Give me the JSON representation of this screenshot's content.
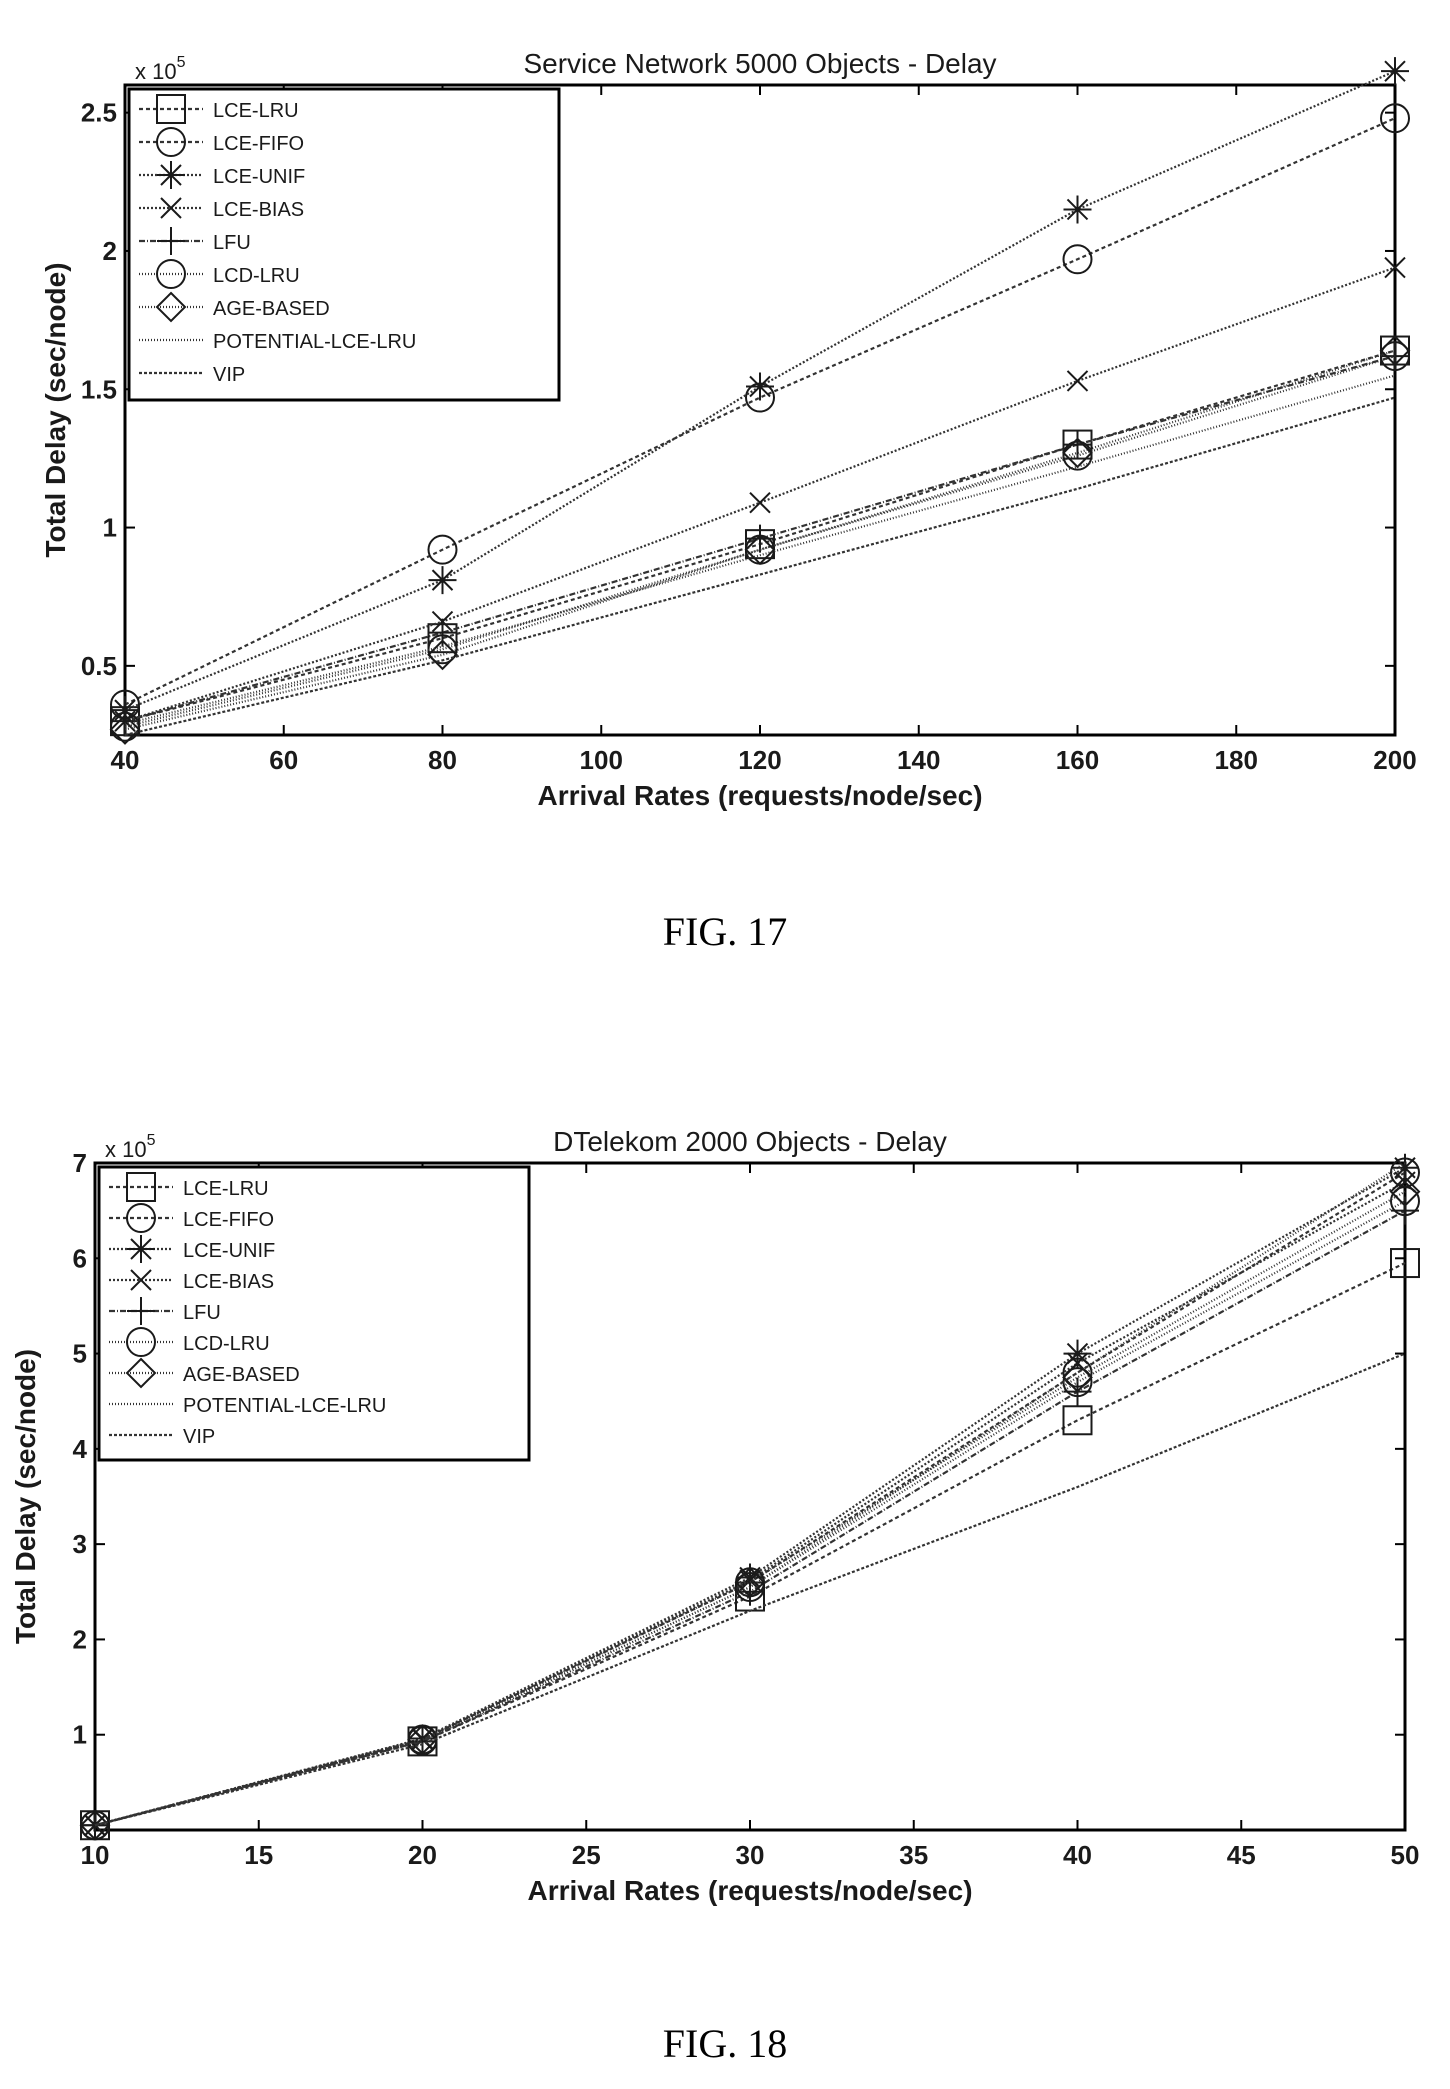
{
  "chart_data": [
    {
      "type": "line",
      "title": "Service Network 5000 Objects - Delay",
      "xlabel": "Arrival Rates (requests/node/sec)",
      "ylabel": "Total Delay (sec/node)",
      "y_multiplier": "x 10",
      "y_multiplier_exp": "5",
      "xlim": [
        40,
        200
      ],
      "ylim": [
        0.25,
        2.6
      ],
      "xticks": [
        40,
        60,
        80,
        100,
        120,
        140,
        160,
        180,
        200
      ],
      "xtick_labels": [
        "40",
        "60",
        "80",
        "100",
        "120",
        "140",
        "160",
        "180",
        "200"
      ],
      "yticks": [
        0.5,
        1,
        1.5,
        2,
        2.5
      ],
      "ytick_labels": [
        "0.5",
        "1",
        "1.5",
        "2",
        "2.5"
      ],
      "legend_position": "top-left",
      "grid": false,
      "x": [
        40,
        80,
        120,
        160,
        200
      ],
      "series": [
        {
          "name": "LCE-LRU",
          "marker": "square",
          "dash": "4 3",
          "values": [
            0.3,
            0.6,
            0.94,
            1.3,
            1.64
          ]
        },
        {
          "name": "LCE-FIFO",
          "marker": "circle",
          "dash": "4 3",
          "values": [
            0.36,
            0.92,
            1.47,
            1.97,
            2.48
          ]
        },
        {
          "name": "LCE-UNIF",
          "marker": "star",
          "dash": "2 2",
          "values": [
            0.34,
            0.81,
            1.51,
            2.15,
            2.65
          ]
        },
        {
          "name": "LCE-BIAS",
          "marker": "xmark",
          "dash": "2 2",
          "values": [
            0.3,
            0.66,
            1.09,
            1.53,
            1.94
          ]
        },
        {
          "name": "LFU",
          "marker": "plus",
          "dash": "6 2 1 2",
          "values": [
            0.3,
            0.62,
            0.96,
            1.3,
            1.62
          ]
        },
        {
          "name": "LCD-LRU",
          "marker": "circle",
          "dash": "1 2",
          "values": [
            0.28,
            0.56,
            0.92,
            1.26,
            1.62
          ]
        },
        {
          "name": "AGE-BASED",
          "marker": "diamond",
          "dash": "1 2",
          "values": [
            0.27,
            0.54,
            0.92,
            1.27,
            1.64
          ]
        },
        {
          "name": "POTENTIAL-LCE-LRU",
          "marker": "none",
          "dash": "1 2",
          "values": [
            0.29,
            0.57,
            0.9,
            1.22,
            1.55
          ]
        },
        {
          "name": "VIP",
          "marker": "none",
          "dash": "3 2",
          "values": [
            0.25,
            0.52,
            0.83,
            1.14,
            1.47
          ]
        }
      ]
    },
    {
      "type": "line",
      "title": "DTelekom 2000 Objects - Delay",
      "xlabel": "Arrival Rates (requests/node/sec)",
      "ylabel": "Total Delay (sec/node)",
      "y_multiplier": "x 10",
      "y_multiplier_exp": "5",
      "xlim": [
        10,
        50
      ],
      "ylim": [
        0,
        7
      ],
      "xticks": [
        10,
        15,
        20,
        25,
        30,
        35,
        40,
        45,
        50
      ],
      "xtick_labels": [
        "10",
        "15",
        "20",
        "25",
        "30",
        "35",
        "40",
        "45",
        "50"
      ],
      "yticks": [
        1,
        2,
        3,
        4,
        5,
        6,
        7
      ],
      "ytick_labels": [
        "1",
        "2",
        "3",
        "4",
        "5",
        "6",
        "7"
      ],
      "legend_position": "top-left",
      "grid": false,
      "x": [
        10,
        20,
        30,
        40,
        50
      ],
      "series": [
        {
          "name": "LCE-LRU",
          "marker": "square",
          "dash": "4 3",
          "values": [
            0.05,
            0.93,
            2.45,
            4.3,
            5.95
          ]
        },
        {
          "name": "LCE-FIFO",
          "marker": "circle",
          "dash": "4 3",
          "values": [
            0.05,
            0.95,
            2.6,
            4.8,
            6.9
          ]
        },
        {
          "name": "LCE-UNIF",
          "marker": "star",
          "dash": "2 2",
          "values": [
            0.05,
            0.96,
            2.65,
            5.0,
            6.95
          ]
        },
        {
          "name": "LCE-BIAS",
          "marker": "xmark",
          "dash": "2 2",
          "values": [
            0.05,
            0.95,
            2.62,
            4.9,
            6.8
          ]
        },
        {
          "name": "LFU",
          "marker": "plus",
          "dash": "6 2 1 2",
          "values": [
            0.05,
            0.93,
            2.5,
            4.6,
            6.5
          ]
        },
        {
          "name": "LCD-LRU",
          "marker": "circle",
          "dash": "1 2",
          "values": [
            0.05,
            0.94,
            2.55,
            4.7,
            6.6
          ]
        },
        {
          "name": "AGE-BASED",
          "marker": "diamond",
          "dash": "1 2",
          "values": [
            0.05,
            0.95,
            2.6,
            4.75,
            6.7
          ]
        },
        {
          "name": "POTENTIAL-LCE-LRU",
          "marker": "none",
          "dash": "1 2",
          "values": [
            0.05,
            0.94,
            2.55,
            4.8,
            7.0
          ]
        },
        {
          "name": "VIP",
          "marker": "none",
          "dash": "3 2",
          "values": [
            0.05,
            0.9,
            2.3,
            3.6,
            5.0
          ]
        }
      ]
    }
  ],
  "captions": {
    "fig17": "FIG. 17",
    "fig18": "FIG. 18"
  }
}
